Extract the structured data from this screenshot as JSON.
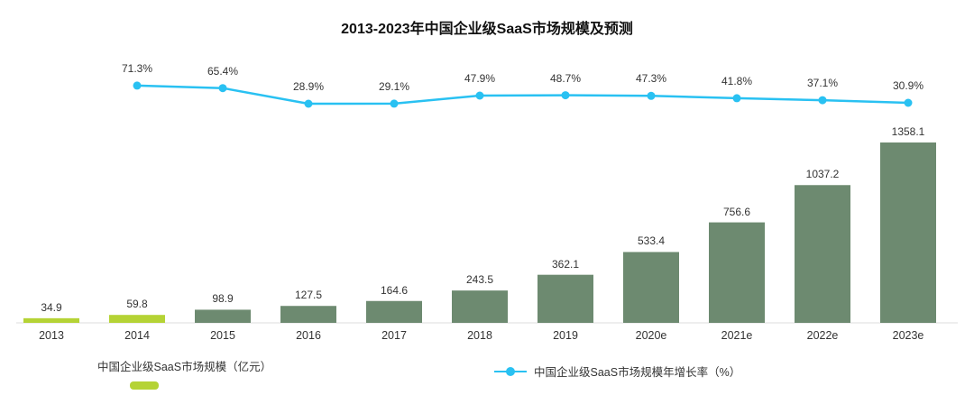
{
  "title": "2013-2023年中国企业级SaaS市场规模及预测",
  "legend": {
    "bars": "中国企业级SaaS市场规模（亿元）",
    "line": "中国企业级SaaS市场规模年增长率（%）"
  },
  "colors": {
    "bar": "#6d8a70",
    "bar_highlight": "#b5d335",
    "line": "#29c1f2",
    "label_text": "#333333",
    "axis_line": "#dddddd"
  },
  "chart_data": {
    "type": "bar+line",
    "title": "2013-2023年中国企业级SaaS市场规模及预测",
    "categories": [
      "2013",
      "2014",
      "2015",
      "2016",
      "2017",
      "2018",
      "2019",
      "2020e",
      "2021e",
      "2022e",
      "2023e"
    ],
    "series": [
      {
        "name": "中国企业级SaaS市场规模（亿元）",
        "type": "bar",
        "values": [
          34.9,
          59.8,
          98.9,
          127.5,
          164.6,
          243.5,
          362.1,
          533.4,
          756.6,
          1037.2,
          1358.1
        ],
        "unit": "亿元"
      },
      {
        "name": "中国企业级SaaS市场规模年增长率（%）",
        "type": "line",
        "values": [
          null,
          71.3,
          65.4,
          28.9,
          29.1,
          47.9,
          48.7,
          47.3,
          41.8,
          37.1,
          30.9
        ],
        "unit": "%"
      }
    ],
    "highlight_bars": [
      0,
      1
    ],
    "value_labels": true,
    "grid": false,
    "legend_position": "bottom"
  }
}
